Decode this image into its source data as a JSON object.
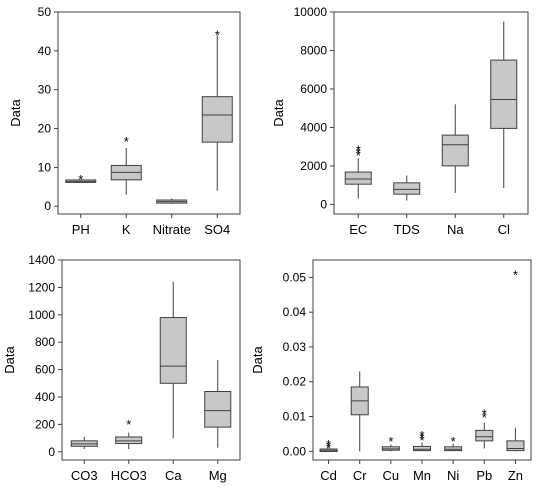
{
  "colors": {
    "box_fill": "#c8c8c8",
    "line": "#404040",
    "frame": "#404040",
    "background": "#ffffff"
  },
  "chart_data": [
    {
      "type": "box",
      "ylabel": "Data",
      "ylim": [
        -2,
        50
      ],
      "yticks": [
        0,
        10,
        20,
        30,
        40,
        50
      ],
      "categories": [
        "PH",
        "K",
        "Nitrate",
        "SO4"
      ],
      "boxes": [
        {
          "category": "PH",
          "whisker_low": 6.2,
          "q1": 6.3,
          "median": 6.4,
          "q3": 6.6,
          "whisker_high": 6.8,
          "outliers": [
            7.3
          ]
        },
        {
          "category": "K",
          "whisker_low": 3,
          "q1": 6.8,
          "median": 8.7,
          "q3": 10.5,
          "whisker_high": 15,
          "outliers": [
            17
          ]
        },
        {
          "category": "Nitrate",
          "whisker_low": 0.6,
          "q1": 0.8,
          "median": 1.2,
          "q3": 1.6,
          "whisker_high": 2,
          "outliers": []
        },
        {
          "category": "SO4",
          "whisker_low": 4,
          "q1": 16.5,
          "median": 23.5,
          "q3": 28.2,
          "whisker_high": 44,
          "outliers": [
            44.5
          ]
        }
      ]
    },
    {
      "type": "box",
      "ylabel": "Data",
      "ylim": [
        -500,
        10000
      ],
      "yticks": [
        0,
        2000,
        4000,
        6000,
        8000,
        10000
      ],
      "categories": [
        "EC",
        "TDS",
        "Na",
        "Cl"
      ],
      "boxes": [
        {
          "category": "EC",
          "whisker_low": 300,
          "q1": 1050,
          "median": 1320,
          "q3": 1680,
          "whisker_high": 2400,
          "outliers": [
            2620,
            2760,
            2900
          ]
        },
        {
          "category": "TDS",
          "whisker_low": 200,
          "q1": 530,
          "median": 780,
          "q3": 1120,
          "whisker_high": 1500,
          "outliers": []
        },
        {
          "category": "Na",
          "whisker_low": 600,
          "q1": 2000,
          "median": 3100,
          "q3": 3600,
          "whisker_high": 5200,
          "outliers": []
        },
        {
          "category": "Cl",
          "whisker_low": 850,
          "q1": 3950,
          "median": 5450,
          "q3": 7500,
          "whisker_high": 9500,
          "outliers": []
        }
      ]
    },
    {
      "type": "box",
      "ylabel": "Data",
      "ylim": [
        -60,
        1400
      ],
      "yticks": [
        0,
        200,
        400,
        600,
        800,
        1000,
        1200,
        1400
      ],
      "categories": [
        "CO3",
        "HCO3",
        "Ca",
        "Mg"
      ],
      "boxes": [
        {
          "category": "CO3",
          "whisker_low": 20,
          "q1": 40,
          "median": 58,
          "q3": 80,
          "whisker_high": 110,
          "outliers": []
        },
        {
          "category": "HCO3",
          "whisker_low": 20,
          "q1": 60,
          "median": 80,
          "q3": 108,
          "whisker_high": 140,
          "outliers": [
            210
          ]
        },
        {
          "category": "Ca",
          "whisker_low": 100,
          "q1": 500,
          "median": 625,
          "q3": 980,
          "whisker_high": 1240,
          "outliers": []
        },
        {
          "category": "Mg",
          "whisker_low": 30,
          "q1": 180,
          "median": 300,
          "q3": 440,
          "whisker_high": 670,
          "outliers": []
        }
      ]
    },
    {
      "type": "box",
      "ylabel": "Data",
      "ylim": [
        -0.0025,
        0.055
      ],
      "yticks": [
        0.0,
        0.01,
        0.02,
        0.03,
        0.04,
        0.05
      ],
      "ytick_decimals": 2,
      "categories": [
        "Cd",
        "Cr",
        "Cu",
        "Mn",
        "Ni",
        "Pb",
        "Zn"
      ],
      "boxes": [
        {
          "category": "Cd",
          "whisker_low": 0.0001,
          "q1": 0.0002,
          "median": 0.0003,
          "q3": 0.0004,
          "whisker_high": 0.0005,
          "outliers": [
            0.0012,
            0.0018,
            0.0024
          ]
        },
        {
          "category": "Cr",
          "whisker_low": 0.0,
          "q1": 0.0105,
          "median": 0.0145,
          "q3": 0.0185,
          "whisker_high": 0.023,
          "outliers": []
        },
        {
          "category": "Cu",
          "whisker_low": 0.0,
          "q1": 0.0003,
          "median": 0.0007,
          "q3": 0.0013,
          "whisker_high": 0.002,
          "outliers": [
            0.0033
          ]
        },
        {
          "category": "Mn",
          "whisker_low": 0.0,
          "q1": 0.0002,
          "median": 0.0006,
          "q3": 0.0014,
          "whisker_high": 0.0026,
          "outliers": [
            0.0035,
            0.0042,
            0.005
          ]
        },
        {
          "category": "Ni",
          "whisker_low": 0.0,
          "q1": 0.0002,
          "median": 0.0006,
          "q3": 0.0013,
          "whisker_high": 0.0022,
          "outliers": [
            0.0033
          ]
        },
        {
          "category": "Pb",
          "whisker_low": 0.0008,
          "q1": 0.003,
          "median": 0.0042,
          "q3": 0.006,
          "whisker_high": 0.0082,
          "outliers": [
            0.0102,
            0.0112
          ]
        },
        {
          "category": "Zn",
          "whisker_low": 0.0,
          "q1": 0.0002,
          "median": 0.0008,
          "q3": 0.003,
          "whisker_high": 0.0068,
          "outliers": [
            0.0511
          ]
        }
      ]
    }
  ]
}
